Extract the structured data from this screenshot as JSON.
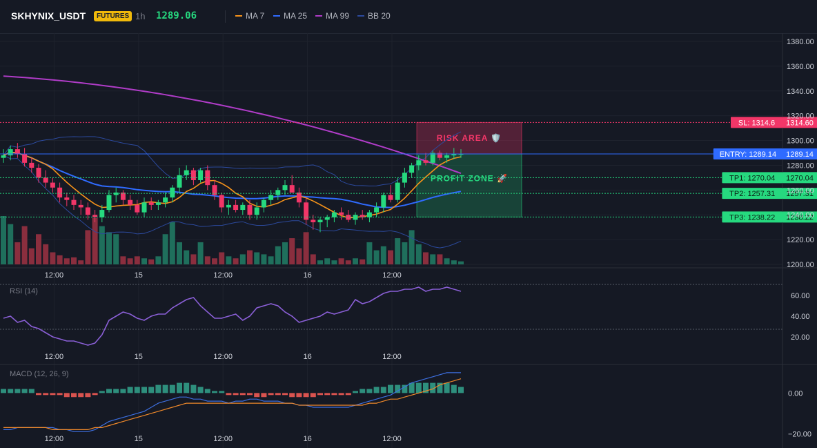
{
  "header": {
    "symbol": "SKHYNIX_USDT",
    "badge": "FUTURES",
    "timeframe": "1h",
    "price": "1289.06",
    "legend": [
      {
        "label": "MA 7",
        "color": "#f7931a"
      },
      {
        "label": "MA 25",
        "color": "#2f6bff"
      },
      {
        "label": "MA 99",
        "color": "#b03cc8"
      },
      {
        "label": "BB 20",
        "color": "#2c4a9e"
      }
    ]
  },
  "colors": {
    "up": "#26d97f",
    "down": "#f23668",
    "vol_up": "#1f6f5c",
    "vol_down": "#8a2e3e",
    "rsi": "#8a5fd6",
    "macd": "#3d6fe0",
    "signal": "#f0892a"
  },
  "price_axis": {
    "min": 1200,
    "max": 1380,
    "ticks": [
      "1380.00",
      "1360.00",
      "1340.00",
      "1320.00",
      "1300.00",
      "1280.00",
      "1260.00",
      "1240.00",
      "1220.00",
      "1200.00"
    ]
  },
  "time_axis": {
    "labels": [
      "12:00",
      "15",
      "12:00",
      "16",
      "12:00"
    ],
    "hours": [
      12,
      24,
      36,
      48,
      60
    ]
  },
  "levels": {
    "sl": {
      "value": 1314.6,
      "label": "SL: 1314.6",
      "price_label": "1314.60"
    },
    "entry": {
      "value": 1289.14,
      "label": "ENTRY: 1289.14",
      "price_label": "1289.14"
    },
    "tp": [
      {
        "value": 1270.04,
        "label": "TP1: 1270.04",
        "price_label": "1270.04"
      },
      {
        "value": 1257.31,
        "label": "TP2: 1257.31",
        "price_label": "1257.31"
      },
      {
        "value": 1238.22,
        "label": "TP3: 1238.22",
        "price_label": "1238.22"
      }
    ]
  },
  "zones": {
    "risk": "RISK AREA 🛡️",
    "profit": "PROFIT ZONE 🚀"
  },
  "rsi": {
    "title": "RSI (14)",
    "ticks": [
      "60.00",
      "40.00",
      "20.00"
    ],
    "tick_values": [
      60,
      40,
      20
    ],
    "min": 10,
    "max": 70
  },
  "macd": {
    "title": "MACD (12, 26, 9)",
    "ticks": [
      "0.00",
      "−20.00"
    ],
    "tick_values": [
      0,
      -20
    ],
    "min": -25,
    "max": 12
  },
  "chart_data": {
    "type": "candlestick",
    "time_step_hours": 1,
    "candles": [
      [
        1286,
        1293,
        1282,
        1288
      ],
      [
        1288,
        1296,
        1284,
        1293
      ],
      [
        1293,
        1298,
        1286,
        1289
      ],
      [
        1289,
        1294,
        1279,
        1282
      ],
      [
        1282,
        1286,
        1274,
        1278
      ],
      [
        1278,
        1281,
        1266,
        1270
      ],
      [
        1270,
        1276,
        1262,
        1266
      ],
      [
        1266,
        1270,
        1258,
        1262
      ],
      [
        1262,
        1266,
        1250,
        1254
      ],
      [
        1254,
        1258,
        1247,
        1252
      ],
      [
        1252,
        1256,
        1244,
        1248
      ],
      [
        1248,
        1252,
        1240,
        1246
      ],
      [
        1246,
        1250,
        1236,
        1240
      ],
      [
        1240,
        1244,
        1234,
        1238
      ],
      [
        1238,
        1248,
        1234,
        1244
      ],
      [
        1244,
        1260,
        1242,
        1256
      ],
      [
        1256,
        1262,
        1250,
        1258
      ],
      [
        1258,
        1260,
        1248,
        1252
      ],
      [
        1252,
        1256,
        1244,
        1248
      ],
      [
        1248,
        1252,
        1240,
        1242
      ],
      [
        1242,
        1254,
        1238,
        1250
      ],
      [
        1250,
        1254,
        1244,
        1248
      ],
      [
        1248,
        1252,
        1244,
        1250
      ],
      [
        1250,
        1258,
        1246,
        1254
      ],
      [
        1254,
        1264,
        1250,
        1262
      ],
      [
        1262,
        1278,
        1258,
        1272
      ],
      [
        1272,
        1280,
        1268,
        1276
      ],
      [
        1276,
        1278,
        1264,
        1268
      ],
      [
        1268,
        1278,
        1266,
        1276
      ],
      [
        1276,
        1280,
        1260,
        1264
      ],
      [
        1264,
        1268,
        1252,
        1256
      ],
      [
        1256,
        1258,
        1242,
        1246
      ],
      [
        1246,
        1252,
        1240,
        1248
      ],
      [
        1248,
        1252,
        1242,
        1244
      ],
      [
        1244,
        1250,
        1240,
        1248
      ],
      [
        1248,
        1252,
        1236,
        1240
      ],
      [
        1240,
        1250,
        1236,
        1246
      ],
      [
        1246,
        1254,
        1242,
        1252
      ],
      [
        1252,
        1260,
        1248,
        1256
      ],
      [
        1256,
        1262,
        1252,
        1260
      ],
      [
        1260,
        1268,
        1256,
        1264
      ],
      [
        1264,
        1272,
        1258,
        1258
      ],
      [
        1258,
        1262,
        1246,
        1250
      ],
      [
        1250,
        1254,
        1232,
        1236
      ],
      [
        1236,
        1240,
        1228,
        1234
      ],
      [
        1234,
        1238,
        1226,
        1236
      ],
      [
        1236,
        1240,
        1230,
        1238
      ],
      [
        1238,
        1244,
        1234,
        1242
      ],
      [
        1242,
        1246,
        1236,
        1240
      ],
      [
        1240,
        1244,
        1234,
        1236
      ],
      [
        1236,
        1242,
        1232,
        1240
      ],
      [
        1240,
        1244,
        1236,
        1238
      ],
      [
        1238,
        1244,
        1234,
        1242
      ],
      [
        1242,
        1250,
        1238,
        1246
      ],
      [
        1246,
        1258,
        1242,
        1256
      ],
      [
        1256,
        1264,
        1250,
        1252
      ],
      [
        1252,
        1270,
        1250,
        1266
      ],
      [
        1266,
        1278,
        1262,
        1274
      ],
      [
        1274,
        1282,
        1270,
        1280
      ],
      [
        1280,
        1288,
        1276,
        1284
      ],
      [
        1284,
        1290,
        1280,
        1282
      ],
      [
        1282,
        1292,
        1280,
        1290
      ],
      [
        1290,
        1292,
        1284,
        1286
      ],
      [
        1286,
        1290,
        1282,
        1288
      ],
      [
        1288,
        1294,
        1285,
        1289
      ],
      [
        1289,
        1293,
        1286,
        1289.06
      ]
    ],
    "volume": [
      48,
      40,
      22,
      38,
      16,
      30,
      20,
      12,
      9,
      6,
      7,
      4,
      34,
      46,
      38,
      32,
      30,
      8,
      6,
      8,
      6,
      5,
      8,
      30,
      42,
      22,
      14,
      10,
      22,
      8,
      6,
      12,
      8,
      6,
      10,
      14,
      12,
      10,
      8,
      18,
      22,
      26,
      16,
      32,
      10,
      4,
      6,
      4,
      6,
      4,
      6,
      5,
      22,
      14,
      18,
      14,
      26,
      22,
      34,
      20,
      12,
      10,
      10,
      6,
      4,
      3
    ],
    "rsi": [
      38,
      40,
      34,
      36,
      30,
      28,
      24,
      20,
      18,
      16,
      16,
      14,
      12,
      14,
      22,
      36,
      40,
      44,
      42,
      38,
      36,
      40,
      42,
      42,
      48,
      52,
      56,
      58,
      50,
      44,
      38,
      38,
      40,
      42,
      36,
      40,
      48,
      50,
      52,
      50,
      44,
      40,
      34,
      36,
      38,
      40,
      44,
      42,
      44,
      46,
      56,
      52,
      54,
      58,
      62,
      64,
      64,
      66,
      66,
      68,
      64,
      66,
      66,
      68,
      66,
      64
    ],
    "macd": [
      -18,
      -18,
      -17,
      -17,
      -17,
      -17,
      -17,
      -17,
      -18,
      -18,
      -19,
      -19,
      -19,
      -18,
      -16,
      -14,
      -13,
      -12,
      -11,
      -10,
      -9,
      -7,
      -5,
      -4,
      -3,
      -2,
      -2,
      -3,
      -3,
      -4,
      -4,
      -4,
      -5,
      -4,
      -4,
      -3,
      -3,
      -4,
      -4,
      -4,
      -5,
      -5,
      -6,
      -6,
      -7,
      -7,
      -7,
      -7,
      -7,
      -7,
      -6,
      -5,
      -4,
      -3,
      -2,
      -1,
      1,
      3,
      5,
      6,
      7,
      8,
      9,
      10,
      10,
      10
    ],
    "signal": [
      -17,
      -17,
      -17,
      -17,
      -17,
      -17,
      -17,
      -18,
      -18,
      -18,
      -18,
      -18,
      -18,
      -17,
      -17,
      -16,
      -15,
      -14,
      -13,
      -12,
      -11,
      -10,
      -9,
      -8,
      -7,
      -6,
      -5,
      -5,
      -5,
      -5,
      -5,
      -5,
      -5,
      -5,
      -5,
      -5,
      -5,
      -5,
      -5,
      -5,
      -5,
      -5,
      -6,
      -6,
      -6,
      -6,
      -6,
      -6,
      -6,
      -6,
      -6,
      -6,
      -5,
      -5,
      -4,
      -3,
      -3,
      -2,
      -1,
      0,
      1,
      2,
      4,
      5,
      6,
      7
    ],
    "hist": [
      2,
      2,
      2,
      2,
      2,
      -1,
      -1,
      -1,
      -1,
      -2,
      -2,
      -2,
      -2,
      -1,
      1,
      2,
      2,
      2,
      3,
      3,
      3,
      3,
      4,
      4,
      4,
      5,
      5,
      4,
      3,
      2,
      1,
      1,
      -1,
      -1,
      -1,
      -1,
      -2,
      -2,
      -1,
      -1,
      -1,
      -2,
      -2,
      -2,
      -2,
      -1,
      -1,
      -1,
      -1,
      -1,
      1,
      2,
      2,
      3,
      3,
      4,
      4,
      4,
      5,
      5,
      5,
      5,
      5,
      5,
      4,
      3
    ]
  }
}
